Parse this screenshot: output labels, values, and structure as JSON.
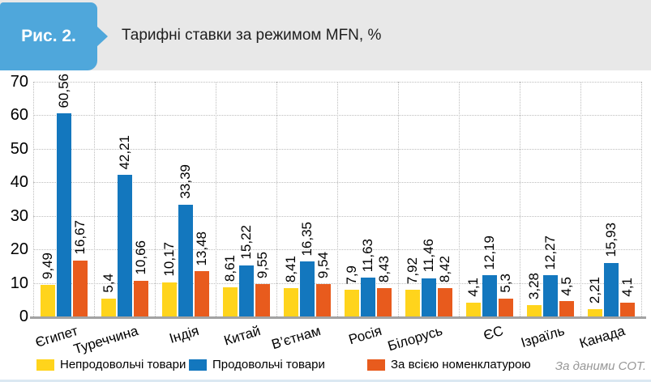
{
  "header": {
    "figure_label": "Рис. 2.",
    "title": "Тарифні ставки за режимом MFN, %",
    "badge_color": "#4FA7DB",
    "bar_background": "#E8E8E8"
  },
  "footer": {
    "source": "За даними СОТ."
  },
  "chart_data": {
    "type": "bar",
    "title": "Тарифні ставки за режимом MFN, %",
    "categories": [
      "Єгипет",
      "Туреччина",
      "Індія",
      "Китай",
      "В’єтнам",
      "Росія",
      "Білорусь",
      "ЄС",
      "Ізраїль",
      "Канада"
    ],
    "series": [
      {
        "name": "Непродовольчі товари",
        "color": "#FFD41C",
        "values": [
          9.49,
          5.4,
          10.17,
          8.61,
          8.41,
          7.9,
          7.92,
          4.1,
          3.28,
          2.21
        ],
        "labels": [
          "9,49",
          "5,4",
          "10,17",
          "8,61",
          "8,41",
          "7,9",
          "7,92",
          "4,1",
          "3,28",
          "2,21"
        ]
      },
      {
        "name": "Продовольчі товари",
        "color": "#1377BE",
        "values": [
          60.56,
          42.21,
          33.39,
          15.22,
          16.35,
          11.63,
          11.46,
          12.19,
          12.27,
          15.93
        ],
        "labels": [
          "60,56",
          "42,21",
          "33,39",
          "15,22",
          "16,35",
          "11,63",
          "11,46",
          "12,19",
          "12,27",
          "15,93"
        ]
      },
      {
        "name": "За всією номенклатурою",
        "color": "#E85B1D",
        "values": [
          16.67,
          10.66,
          13.48,
          9.55,
          9.54,
          8.43,
          8.42,
          5.3,
          4.5,
          4.1
        ],
        "labels": [
          "16,67",
          "10,66",
          "13,48",
          "9,55",
          "9,54",
          "8,43",
          "8,42",
          "5,3",
          "4,5",
          "4,1"
        ]
      }
    ],
    "xlabel": "",
    "ylabel": "",
    "ylim": [
      0,
      70
    ],
    "yticks": [
      0,
      10,
      20,
      30,
      40,
      50,
      60,
      70
    ],
    "grid": {
      "horizontal": true,
      "vertical": true,
      "style": "dotted"
    },
    "legend_position": "bottom",
    "value_labels": "rotated vertical above bars",
    "category_labels": "rotated -17deg",
    "axis_color": "#A3A3A3",
    "grid_color": "#BDBDBD"
  }
}
